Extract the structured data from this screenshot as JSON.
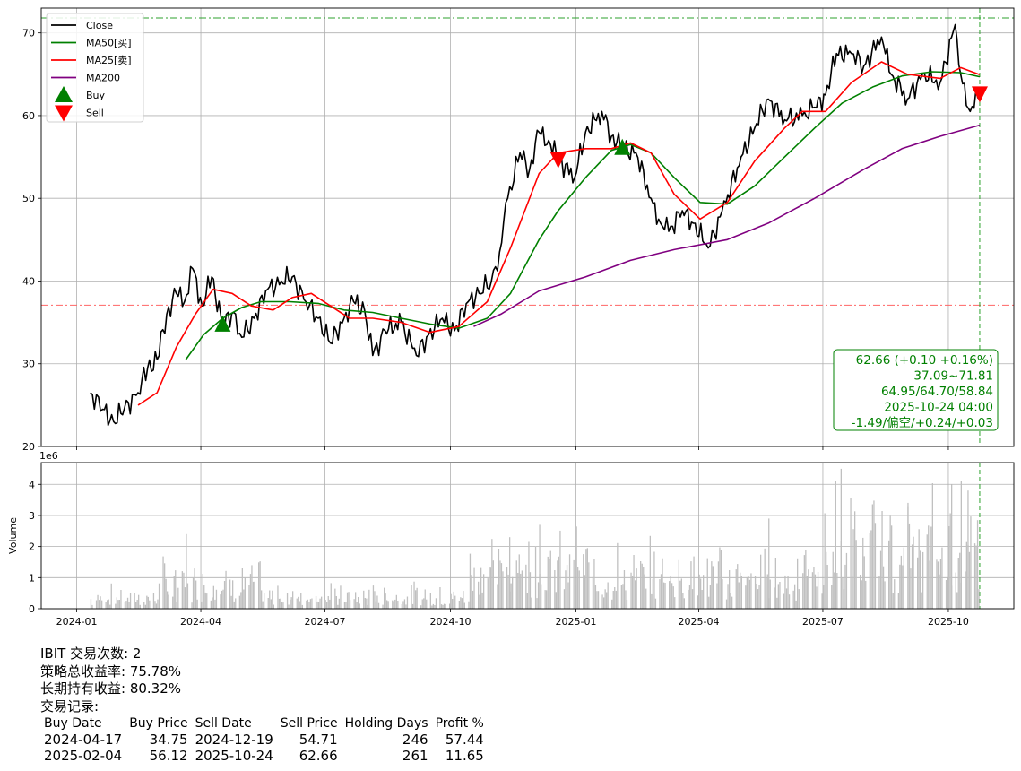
{
  "chart_data": [
    {
      "type": "line",
      "panel": "price",
      "ylim": [
        20,
        73
      ],
      "y_ticks": [
        "20",
        "30",
        "40",
        "50",
        "60",
        "70"
      ],
      "grid": true,
      "legend_position": "top-left",
      "legend": [
        "Close",
        "MA50[买]",
        "MA25[卖]",
        "MA200",
        "Buy",
        "Sell"
      ],
      "series": [
        {
          "name": "Close",
          "color": "#000000",
          "points": [
            [
              "2024-01-11",
              26.5
            ],
            [
              "2024-01-20",
              24.5
            ],
            [
              "2024-01-28",
              23.0
            ],
            [
              "2024-02-05",
              24.6
            ],
            [
              "2024-02-15",
              26.5
            ],
            [
              "2024-02-22",
              29.5
            ],
            [
              "2024-02-29",
              30.5
            ],
            [
              "2024-03-07",
              36.0
            ],
            [
              "2024-03-14",
              38.5
            ],
            [
              "2024-03-20",
              37.5
            ],
            [
              "2024-03-26",
              41.5
            ],
            [
              "2024-04-02",
              37.0
            ],
            [
              "2024-04-09",
              40.5
            ],
            [
              "2024-04-17",
              34.6
            ],
            [
              "2024-04-25",
              36.2
            ],
            [
              "2024-05-01",
              33.2
            ],
            [
              "2024-05-10",
              35.5
            ],
            [
              "2024-05-20",
              39.0
            ],
            [
              "2024-05-30",
              40.0
            ],
            [
              "2024-06-07",
              40.5
            ],
            [
              "2024-06-17",
              37.5
            ],
            [
              "2024-06-26",
              35.5
            ],
            [
              "2024-07-05",
              32.5
            ],
            [
              "2024-07-15",
              35.5
            ],
            [
              "2024-07-22",
              37.5
            ],
            [
              "2024-07-30",
              36.5
            ],
            [
              "2024-08-05",
              31.0
            ],
            [
              "2024-08-14",
              34.0
            ],
            [
              "2024-08-26",
              35.0
            ],
            [
              "2024-09-06",
              31.0
            ],
            [
              "2024-09-15",
              33.5
            ],
            [
              "2024-09-25",
              35.5
            ],
            [
              "2024-10-04",
              34.0
            ],
            [
              "2024-10-14",
              37.5
            ],
            [
              "2024-10-22",
              38.5
            ],
            [
              "2024-10-31",
              40.0
            ],
            [
              "2024-11-06",
              43.5
            ],
            [
              "2024-11-12",
              50.0
            ],
            [
              "2024-11-21",
              55.5
            ],
            [
              "2024-11-28",
              53.5
            ],
            [
              "2024-12-05",
              58.0
            ],
            [
              "2024-12-12",
              57.0
            ],
            [
              "2024-12-19",
              54.7
            ],
            [
              "2024-12-31",
              52.5
            ],
            [
              "2025-01-08",
              58.0
            ],
            [
              "2025-01-20",
              60.5
            ],
            [
              "2025-01-27",
              57.5
            ],
            [
              "2025-02-04",
              56.1
            ],
            [
              "2025-02-14",
              55.5
            ],
            [
              "2025-02-25",
              50.0
            ],
            [
              "2025-03-04",
              47.0
            ],
            [
              "2025-03-10",
              46.0
            ],
            [
              "2025-03-20",
              48.5
            ],
            [
              "2025-03-28",
              47.0
            ],
            [
              "2025-04-08",
              44.0
            ],
            [
              "2025-04-21",
              49.5
            ],
            [
              "2025-05-02",
              55.0
            ],
            [
              "2025-05-12",
              58.5
            ],
            [
              "2025-05-22",
              62.0
            ],
            [
              "2025-06-03",
              59.5
            ],
            [
              "2025-06-16",
              60.0
            ],
            [
              "2025-06-25",
              61.0
            ],
            [
              "2025-07-03",
              62.5
            ],
            [
              "2025-07-11",
              67.5
            ],
            [
              "2025-07-22",
              67.5
            ],
            [
              "2025-07-31",
              66.0
            ],
            [
              "2025-08-13",
              69.5
            ],
            [
              "2025-08-20",
              65.0
            ],
            [
              "2025-09-01",
              62.0
            ],
            [
              "2025-09-12",
              65.0
            ],
            [
              "2025-09-25",
              64.0
            ],
            [
              "2025-10-06",
              71.0
            ],
            [
              "2025-10-10",
              65.0
            ],
            [
              "2025-10-17",
              60.5
            ],
            [
              "2025-10-24",
              62.66
            ]
          ]
        },
        {
          "name": "MA50[买]",
          "color": "#008000",
          "points": [
            [
              "2024-03-21",
              30.5
            ],
            [
              "2024-04-03",
              33.5
            ],
            [
              "2024-04-17",
              35.5
            ],
            [
              "2024-05-01",
              36.8
            ],
            [
              "2024-05-15",
              37.5
            ],
            [
              "2024-06-05",
              37.5
            ],
            [
              "2024-06-26",
              37.3
            ],
            [
              "2024-07-15",
              36.5
            ],
            [
              "2024-08-05",
              36.2
            ],
            [
              "2024-08-26",
              35.5
            ],
            [
              "2024-09-16",
              34.8
            ],
            [
              "2024-10-07",
              34.3
            ],
            [
              "2024-10-28",
              35.5
            ],
            [
              "2024-11-14",
              38.5
            ],
            [
              "2024-12-05",
              45.0
            ],
            [
              "2024-12-19",
              48.5
            ],
            [
              "2025-01-08",
              52.5
            ],
            [
              "2025-01-27",
              55.8
            ],
            [
              "2025-02-10",
              56.5
            ],
            [
              "2025-02-25",
              55.5
            ],
            [
              "2025-03-14",
              52.5
            ],
            [
              "2025-04-02",
              49.5
            ],
            [
              "2025-04-22",
              49.3
            ],
            [
              "2025-05-12",
              51.5
            ],
            [
              "2025-06-03",
              55.0
            ],
            [
              "2025-06-25",
              58.5
            ],
            [
              "2025-07-15",
              61.5
            ],
            [
              "2025-08-07",
              63.5
            ],
            [
              "2025-08-28",
              64.8
            ],
            [
              "2025-09-19",
              65.3
            ],
            [
              "2025-10-10",
              65.2
            ],
            [
              "2025-10-24",
              64.7
            ]
          ]
        },
        {
          "name": "MA25[卖]",
          "color": "#ff0000",
          "points": [
            [
              "2024-02-15",
              25.0
            ],
            [
              "2024-02-29",
              26.5
            ],
            [
              "2024-03-14",
              32.0
            ],
            [
              "2024-03-28",
              36.0
            ],
            [
              "2024-04-10",
              39.0
            ],
            [
              "2024-04-24",
              38.5
            ],
            [
              "2024-05-08",
              37.0
            ],
            [
              "2024-05-24",
              36.5
            ],
            [
              "2024-06-07",
              38.0
            ],
            [
              "2024-06-21",
              38.5
            ],
            [
              "2024-07-05",
              37.0
            ],
            [
              "2024-07-19",
              35.5
            ],
            [
              "2024-08-05",
              35.5
            ],
            [
              "2024-08-26",
              35.0
            ],
            [
              "2024-09-16",
              33.8
            ],
            [
              "2024-10-07",
              34.5
            ],
            [
              "2024-10-28",
              37.5
            ],
            [
              "2024-11-14",
              44.0
            ],
            [
              "2024-12-05",
              53.0
            ],
            [
              "2024-12-19",
              55.5
            ],
            [
              "2025-01-08",
              56.0
            ],
            [
              "2025-01-27",
              56.0
            ],
            [
              "2025-02-10",
              56.7
            ],
            [
              "2025-02-25",
              55.5
            ],
            [
              "2025-03-14",
              50.5
            ],
            [
              "2025-04-02",
              47.5
            ],
            [
              "2025-04-22",
              49.5
            ],
            [
              "2025-05-12",
              54.5
            ],
            [
              "2025-06-03",
              58.5
            ],
            [
              "2025-06-16",
              60.5
            ],
            [
              "2025-07-03",
              60.5
            ],
            [
              "2025-07-22",
              64.0
            ],
            [
              "2025-08-13",
              66.5
            ],
            [
              "2025-09-01",
              65.0
            ],
            [
              "2025-09-25",
              64.5
            ],
            [
              "2025-10-10",
              65.8
            ],
            [
              "2025-10-24",
              64.95
            ]
          ]
        },
        {
          "name": "MA200",
          "color": "#800080",
          "points": [
            [
              "2024-10-18",
              34.5
            ],
            [
              "2024-11-07",
              36.0
            ],
            [
              "2024-12-05",
              38.8
            ],
            [
              "2025-01-08",
              40.5
            ],
            [
              "2025-02-10",
              42.5
            ],
            [
              "2025-03-14",
              43.8
            ],
            [
              "2025-04-22",
              45.0
            ],
            [
              "2025-05-22",
              47.0
            ],
            [
              "2025-06-25",
              50.0
            ],
            [
              "2025-07-31",
              53.5
            ],
            [
              "2025-08-28",
              56.0
            ],
            [
              "2025-09-25",
              57.5
            ],
            [
              "2025-10-24",
              58.84
            ]
          ]
        }
      ],
      "markers": [
        {
          "name": "Buy",
          "shape": "triangle-up",
          "color": "#008000",
          "points": [
            [
              "2024-04-17",
              34.75
            ],
            [
              "2025-02-04",
              56.12
            ]
          ]
        },
        {
          "name": "Sell",
          "shape": "triangle-down",
          "color": "#ff0000",
          "points": [
            [
              "2024-12-19",
              54.71
            ],
            [
              "2025-10-24",
              62.66
            ]
          ]
        }
      ],
      "hlines": [
        {
          "value": 71.81,
          "color": "#2ca02c",
          "style": "dashdot"
        },
        {
          "value": 37.09,
          "color": "#ff6666",
          "style": "dashdot"
        }
      ],
      "vline": {
        "date": "2025-10-24",
        "color": "#2ca02c",
        "style": "dashed"
      },
      "annotation": {
        "color": "#008000",
        "lines": [
          "62.66 (+0.10 +0.16%)",
          "37.09~71.81",
          "64.95/64.70/58.84",
          "2025-10-24 04:00",
          "-1.49/偏空/+0.24/+0.03"
        ]
      }
    },
    {
      "type": "bar",
      "panel": "volume",
      "ylabel": "Volume",
      "scale_label": "1e6",
      "ylim": [
        0,
        4.7
      ],
      "y_ticks": [
        "0",
        "1",
        "2",
        "3",
        "4"
      ],
      "x_ticks": [
        "2024-01",
        "2024-04",
        "2024-07",
        "2024-10",
        "2025-01",
        "2025-04",
        "2025-07",
        "2025-10"
      ],
      "color": "#c0c0c0",
      "grid": true,
      "series": [
        {
          "period": [
            "2024-01-11",
            "2024-03-01"
          ],
          "base": 0.3,
          "amp": 0.5
        },
        {
          "period": [
            "2024-03-01",
            "2024-05-15"
          ],
          "base": 0.7,
          "amp": 1.0
        },
        {
          "period": [
            "2024-05-15",
            "2024-10-15"
          ],
          "base": 0.35,
          "amp": 0.5
        },
        {
          "period": [
            "2024-10-15",
            "2025-01-15"
          ],
          "base": 1.3,
          "amp": 1.3
        },
        {
          "period": [
            "2025-01-15",
            "2025-07-01"
          ],
          "base": 0.9,
          "amp": 1.3
        },
        {
          "period": [
            "2025-07-01",
            "2025-10-24"
          ],
          "base": 1.5,
          "amp": 2.6
        }
      ],
      "peaks": [
        [
          "2024-03-21",
          2.4
        ],
        [
          "2024-11-13",
          2.3
        ],
        [
          "2024-12-05",
          2.7
        ],
        [
          "2025-05-22",
          2.9
        ],
        [
          "2025-07-14",
          4.5
        ],
        [
          "2025-07-10",
          4.1
        ],
        [
          "2025-09-01",
          3.3
        ],
        [
          "2025-10-03",
          4.0
        ],
        [
          "2025-10-10",
          4.1
        ],
        [
          "2025-10-15",
          3.8
        ]
      ]
    }
  ],
  "summary": {
    "trade_count_line": "IBIT 交易次数: 2",
    "strategy_return_line": "策略总收益率: 75.78%",
    "hold_return_line": "长期持有收益: 80.32%",
    "records_title": "交易记录:"
  },
  "trades": {
    "headers": [
      "Buy Date",
      "Buy Price",
      "Sell Date",
      "Sell Price",
      "Holding Days",
      "Profit %"
    ],
    "rows": [
      [
        "2024-04-17",
        "34.75",
        "2024-12-19",
        "54.71",
        "246",
        "57.44"
      ],
      [
        "2025-02-04",
        "56.12",
        "2025-10-24",
        "62.66",
        "261",
        "11.65"
      ]
    ]
  }
}
